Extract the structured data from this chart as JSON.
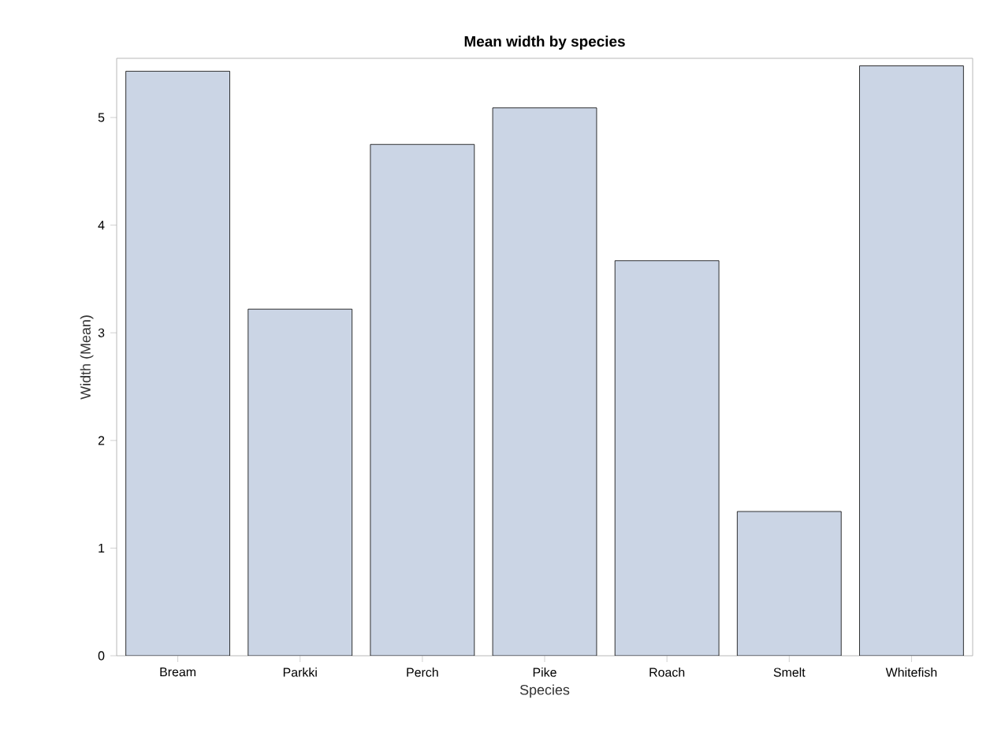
{
  "chart_data": {
    "type": "bar",
    "title": "Mean width by species",
    "xlabel": "Species",
    "ylabel": "Width (Mean)",
    "categories": [
      "Bream",
      "Parkki",
      "Perch",
      "Pike",
      "Roach",
      "Smelt",
      "Whitefish"
    ],
    "values": [
      5.43,
      3.22,
      4.75,
      5.09,
      3.67,
      1.34,
      5.48
    ],
    "color": "#cbd5e5",
    "ylim": [
      0,
      5.55
    ],
    "yticks": [
      0,
      1,
      2,
      3,
      4,
      5
    ],
    "grid": false
  }
}
